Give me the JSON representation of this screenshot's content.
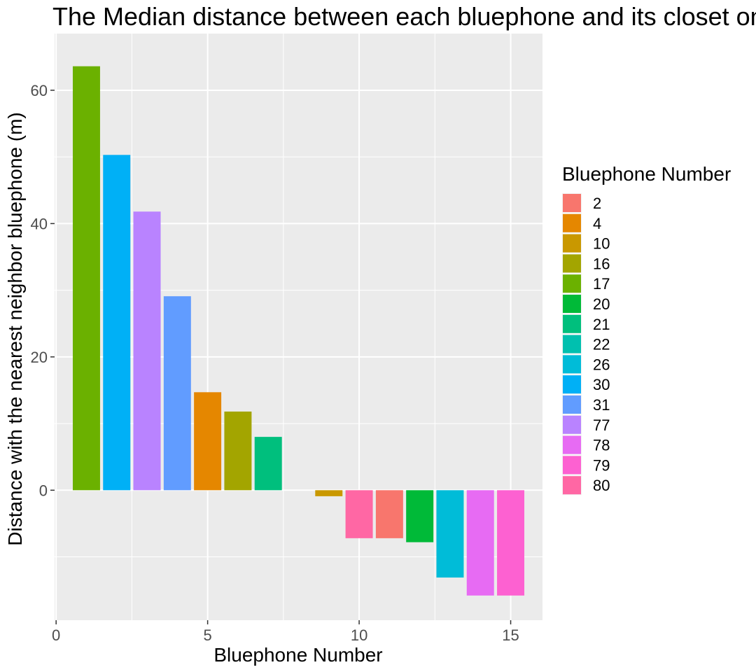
{
  "chart_data": {
    "type": "bar",
    "title": "The Median distance between each bluephone and its closet one",
    "xlabel": "Bluephone Number",
    "ylabel": "Distance with the nearest neighbor bluephone (m)",
    "xlim": [
      -0.05,
      16.05
    ],
    "ylim": [
      -19.5,
      68.5
    ],
    "x_ticks": [
      0,
      5,
      10,
      15
    ],
    "y_ticks": [
      0,
      20,
      40,
      60
    ],
    "grid": true,
    "legend": {
      "title": "Bluephone Number",
      "position": "right",
      "entries": [
        {
          "label": "2",
          "color": "#F8766D"
        },
        {
          "label": "4",
          "color": "#E58700"
        },
        {
          "label": "10",
          "color": "#C99800"
        },
        {
          "label": "16",
          "color": "#A3A500"
        },
        {
          "label": "17",
          "color": "#6BB100"
        },
        {
          "label": "20",
          "color": "#00BA38"
        },
        {
          "label": "21",
          "color": "#00BF7D"
        },
        {
          "label": "22",
          "color": "#00C0AF"
        },
        {
          "label": "26",
          "color": "#00BCD8"
        },
        {
          "label": "30",
          "color": "#00B0F6"
        },
        {
          "label": "31",
          "color": "#619CFF"
        },
        {
          "label": "77",
          "color": "#B983FF"
        },
        {
          "label": "78",
          "color": "#E76BF3"
        },
        {
          "label": "79",
          "color": "#FD61D1"
        },
        {
          "label": "80",
          "color": "#FF67A4"
        }
      ]
    },
    "bars": [
      {
        "x": 1,
        "value": 63.6,
        "group": "17"
      },
      {
        "x": 2,
        "value": 50.3,
        "group": "30"
      },
      {
        "x": 3,
        "value": 41.8,
        "group": "77"
      },
      {
        "x": 4,
        "value": 29.1,
        "group": "31"
      },
      {
        "x": 5,
        "value": 14.7,
        "group": "4"
      },
      {
        "x": 6,
        "value": 11.8,
        "group": "16"
      },
      {
        "x": 7,
        "value": 8.0,
        "group": "21"
      },
      {
        "x": 9,
        "value": -0.9,
        "group": "10"
      },
      {
        "x": 10,
        "value": -7.2,
        "group": "80"
      },
      {
        "x": 11,
        "value": -7.2,
        "group": "2"
      },
      {
        "x": 12,
        "value": -7.8,
        "group": "20"
      },
      {
        "x": 13,
        "value": -13.1,
        "group": "26"
      },
      {
        "x": 14,
        "value": -15.8,
        "group": "78"
      },
      {
        "x": 15,
        "value": -15.8,
        "group": "79"
      }
    ]
  }
}
